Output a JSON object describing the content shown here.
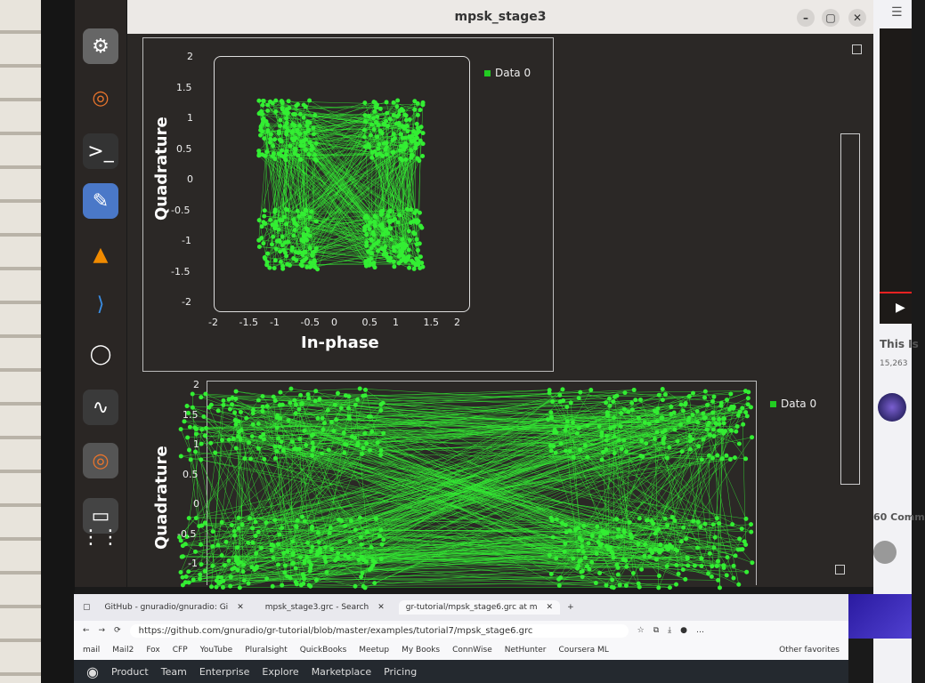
{
  "window": {
    "title": "mpsk_stage3"
  },
  "dock": {
    "icons": [
      "settings-icon",
      "gnuradio-icon",
      "terminal-icon",
      "text-editor-icon",
      "vlc-icon",
      "vscode-icon",
      "network-icon",
      "system-monitor-icon",
      "gnuradio-companion-icon",
      "drive-icon",
      "app-grid-icon"
    ]
  },
  "plot1": {
    "xlabel": "In-phase",
    "ylabel": "Quadrature",
    "legend": "Data 0",
    "xticks": [
      "-2",
      "-1.5",
      "-1",
      "-0.5",
      "0",
      "0.5",
      "1",
      "1.5",
      "2"
    ],
    "yticks": [
      "2",
      "1.5",
      "1",
      "0.5",
      "0",
      "-0.5",
      "-1",
      "-1.5",
      "-2"
    ],
    "color": "#33ee33"
  },
  "plot2": {
    "ylabel": "Quadrature",
    "legend": "Data 0",
    "yticks": [
      "2",
      "1.5",
      "1",
      "0.5",
      "0",
      "-0.5",
      "-1"
    ],
    "color": "#33ee33"
  },
  "browser": {
    "tabs": [
      "GitHub - gnuradio/gnuradio: Gi",
      "mpsk_stage3.grc - Search",
      "gr-tutorial/mpsk_stage6.grc at m"
    ],
    "url": "https://github.com/gnuradio/gr-tutorial/blob/master/examples/tutorial7/mpsk_stage6.grc",
    "bookmarks": [
      "mail",
      "Mail2",
      "Fox",
      "CFP",
      "YouTube",
      "Pluralsight",
      "QuickBooks",
      "Meetup",
      "My Books",
      "ConnWise",
      "NetHunter",
      "Coursera ML"
    ],
    "other_favorites": "Other favorites",
    "github_nav": [
      "Product",
      "Team",
      "Enterprise",
      "Explore",
      "Marketplace",
      "Pricing"
    ]
  },
  "youtube": {
    "title": "This Is",
    "views": "15,263",
    "comments": "60 Comm"
  }
}
